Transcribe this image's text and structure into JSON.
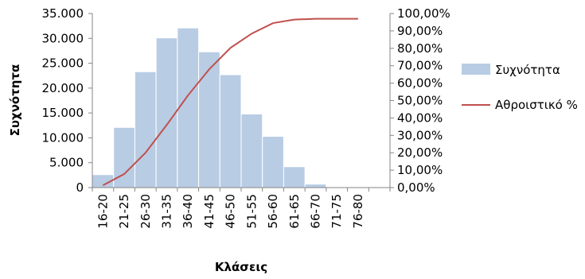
{
  "chart_data": {
    "type": "bar",
    "title": "",
    "xlabel": "Κλάσεις",
    "ylabel": "Συχνότητα",
    "categories": [
      "16-20",
      "21-25",
      "26-30",
      "31-35",
      "36-40",
      "41-45",
      "46-50",
      "51-55",
      "56-60",
      "61-65",
      "66-70",
      "71-75",
      "76-80",
      ""
    ],
    "series": [
      {
        "name": "Συχνότητα",
        "type": "bar",
        "axis": "left",
        "color": "#b8cce4",
        "values": [
          2600,
          12100,
          23300,
          30100,
          32100,
          27300,
          22700,
          14800,
          10300,
          4200,
          700,
          0,
          0,
          null
        ]
      },
      {
        "name": "Αθροιστικό %",
        "type": "line",
        "axis": "right",
        "color": "#c0504d",
        "values": [
          1.3,
          7.8,
          20.0,
          36.0,
          53.0,
          68.0,
          80.3,
          88.5,
          94.5,
          96.5,
          97.0,
          97.0,
          97.0,
          null
        ]
      }
    ],
    "ylim": [
      0,
      35000
    ],
    "yticks": [
      "35.000",
      "30.000",
      "25.000",
      "20.000",
      "15.000",
      "10.000",
      "5.000",
      "0"
    ],
    "y2lim": [
      0,
      100
    ],
    "y2ticks": [
      "100,00%",
      "90,00%",
      "80,00%",
      "70,00%",
      "60,00%",
      "50,00%",
      "40,00%",
      "30,00%",
      "20,00%",
      "10,00%",
      "0,00%"
    ],
    "legend_position": "right",
    "grid": false
  }
}
